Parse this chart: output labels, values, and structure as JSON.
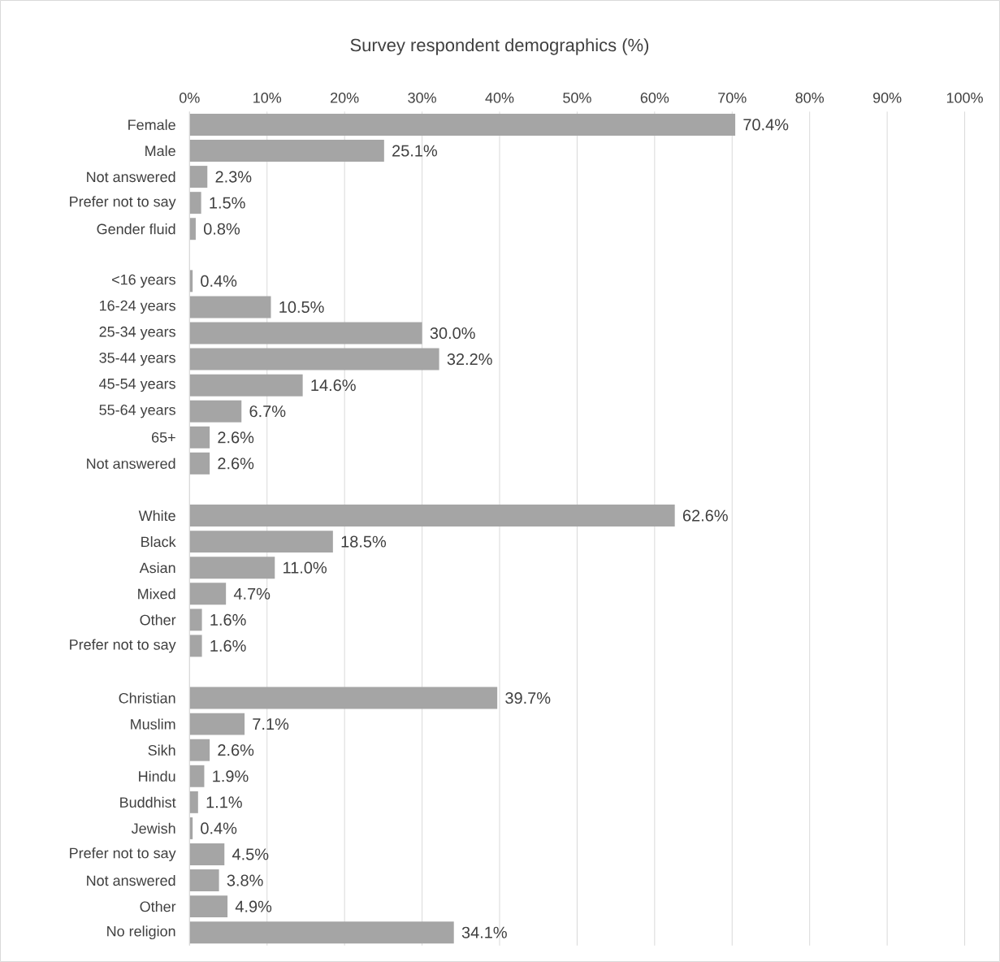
{
  "chart_data": {
    "type": "bar",
    "orientation": "horizontal",
    "title": "Survey respondent demographics (%)",
    "categories": [
      "Female",
      "Male",
      "Not answered",
      "Prefer not to say",
      "Gender fluid",
      null,
      "<16 years",
      "16-24 years",
      "25-34 years",
      "35-44 years",
      "45-54 years",
      "55-64 years",
      "65+",
      "Not answered",
      null,
      "White",
      "Black",
      "Asian",
      "Mixed",
      "Other",
      "Prefer not to say",
      null,
      "Christian",
      "Muslim",
      "Sikh",
      "Hindu",
      "Buddhist",
      "Jewish",
      "Prefer not to say",
      "Not answered",
      "Other",
      "No religion"
    ],
    "values": [
      70.4,
      25.1,
      2.3,
      1.5,
      0.8,
      null,
      0.4,
      10.5,
      30.0,
      32.2,
      14.6,
      6.7,
      2.6,
      2.6,
      null,
      62.6,
      18.5,
      11.0,
      4.7,
      1.6,
      1.6,
      null,
      39.7,
      7.1,
      2.6,
      1.9,
      1.1,
      0.4,
      4.5,
      3.8,
      4.9,
      34.1
    ],
    "value_labels": [
      "70.4%",
      "25.1%",
      "2.3%",
      "1.5%",
      "0.8%",
      null,
      "0.4%",
      "10.5%",
      "30.0%",
      "32.2%",
      "14.6%",
      "6.7%",
      "2.6%",
      "2.6%",
      null,
      "62.6%",
      "18.5%",
      "11.0%",
      "4.7%",
      "1.6%",
      "1.6%",
      null,
      "39.7%",
      "7.1%",
      "2.6%",
      "1.9%",
      "1.1%",
      "0.4%",
      "4.5%",
      "3.8%",
      "4.9%",
      "34.1%"
    ],
    "color": "#a5a5a5",
    "xlim": [
      0,
      100
    ],
    "xticks": [
      {
        "value": 0,
        "label": "0%"
      },
      {
        "value": 10,
        "label": "10%"
      },
      {
        "value": 20,
        "label": "20%"
      },
      {
        "value": 30,
        "label": "30%"
      },
      {
        "value": 40,
        "label": "40%"
      },
      {
        "value": 50,
        "label": "50%"
      },
      {
        "value": 60,
        "label": "60%"
      },
      {
        "value": 70,
        "label": "70%"
      },
      {
        "value": 80,
        "label": "80%"
      },
      {
        "value": 90,
        "label": "90%"
      },
      {
        "value": 100,
        "label": "100%"
      }
    ],
    "grid": "x"
  }
}
